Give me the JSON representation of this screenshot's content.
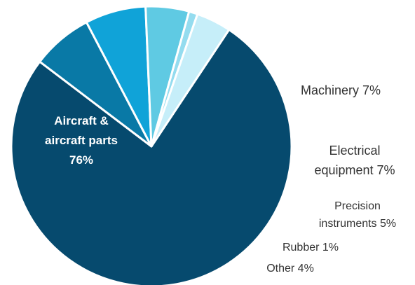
{
  "chart_data": {
    "type": "pie",
    "title": "",
    "slices": [
      {
        "name": "Aircraft & aircraft parts",
        "value": 76,
        "color": "#064a6e",
        "label_lines": [
          "Aircraft &",
          "aircraft parts",
          "76%"
        ]
      },
      {
        "name": "Machinery",
        "value": 7,
        "color": "#0979a6",
        "label_lines": [
          "Machinery 7%"
        ]
      },
      {
        "name": "Electrical equipment",
        "value": 7,
        "color": "#10a3d8",
        "label_lines": [
          "Electrical",
          "equipment 7%"
        ]
      },
      {
        "name": "Precision instruments",
        "value": 5,
        "color": "#5fcae3",
        "label_lines": [
          "Precision",
          "instruments 5%"
        ]
      },
      {
        "name": "Rubber",
        "value": 1,
        "color": "#94dcef",
        "label_lines": [
          "Rubber 1%"
        ]
      },
      {
        "name": "Other",
        "value": 4,
        "color": "#c6eef9",
        "label_lines": [
          "Other 4%"
        ]
      }
    ],
    "labels_outside": true
  }
}
